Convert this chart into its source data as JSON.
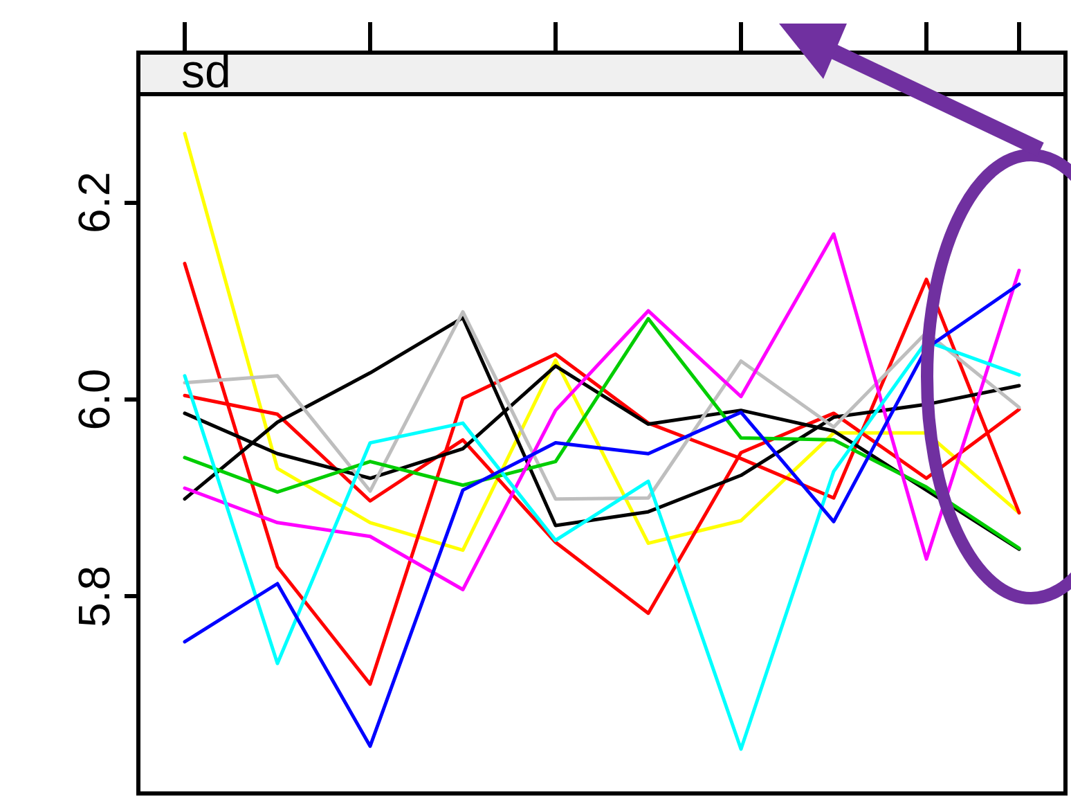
{
  "chart_data": {
    "type": "line",
    "title": "sd",
    "categories": [
      null,
      null,
      null,
      null,
      null,
      null,
      null,
      null,
      null,
      null
    ],
    "ylim": [
      5.6,
      6.31
    ],
    "yticks": [
      {
        "value": 5.8,
        "label": "5.8"
      },
      {
        "value": 6.0,
        "label": "6.0"
      },
      {
        "value": 6.2,
        "label": "6.2"
      }
    ],
    "grid": false,
    "marker": "none",
    "line_style": "solid",
    "tick_labels": "y",
    "series": [
      {
        "color": "#ffff00",
        "values": [
          6.27,
          5.93,
          5.875,
          5.847,
          6.04,
          5.854,
          5.877,
          5.966,
          5.966,
          5.885
        ]
      },
      {
        "color": "#ff0000",
        "values": [
          6.138,
          5.83,
          5.711,
          6.001,
          6.046,
          5.976,
          5.94,
          5.9,
          6.122,
          5.885
        ]
      },
      {
        "color": "#ff0000",
        "values": [
          6.004,
          5.985,
          5.897,
          5.959,
          5.855,
          5.783,
          5.946,
          5.986,
          5.92,
          5.99
        ]
      },
      {
        "color": "#000000",
        "values": [
          5.986,
          5.945,
          5.92,
          5.95,
          6.034,
          5.975,
          5.989,
          5.968,
          5.908,
          5.848
        ]
      },
      {
        "color": "#000000",
        "values": [
          5.899,
          5.977,
          6.027,
          6.083,
          5.872,
          5.886,
          5.923,
          5.982,
          5.995,
          6.014
        ]
      },
      {
        "color": "#bebebe",
        "values": [
          6.017,
          6.024,
          5.907,
          6.089,
          5.899,
          5.9,
          6.039,
          5.972,
          6.068,
          5.992
        ]
      },
      {
        "color": "#00cd00",
        "values": [
          5.941,
          5.906,
          5.937,
          5.913,
          5.937,
          6.082,
          5.961,
          5.959,
          5.911,
          5.849
        ]
      },
      {
        "color": "#ff00ff",
        "values": [
          5.91,
          5.875,
          5.861,
          5.807,
          5.989,
          6.09,
          6.003,
          6.168,
          5.838,
          6.131
        ]
      },
      {
        "color": "#00ffff",
        "values": [
          6.024,
          5.732,
          5.956,
          5.976,
          5.857,
          5.917,
          5.645,
          5.927,
          6.059,
          6.025
        ]
      },
      {
        "color": "#0000ff",
        "values": [
          5.754,
          5.813,
          5.648,
          5.908,
          5.956,
          5.945,
          5.987,
          5.876,
          6.052,
          6.117
        ]
      }
    ]
  }
}
